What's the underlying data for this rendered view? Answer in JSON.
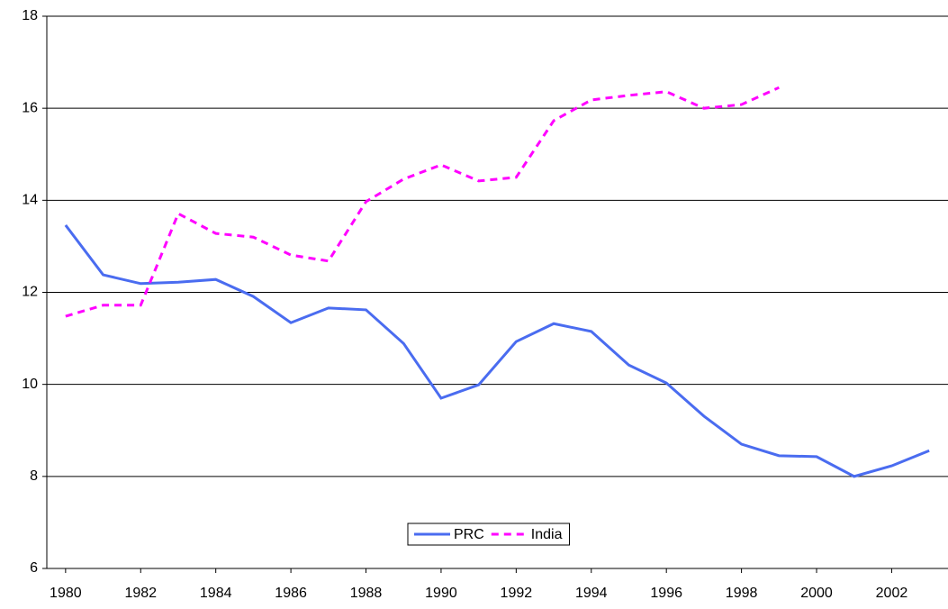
{
  "chart_data": {
    "type": "line",
    "x": [
      1980,
      1981,
      1982,
      1983,
      1984,
      1985,
      1986,
      1987,
      1988,
      1989,
      1990,
      1991,
      1992,
      1993,
      1994,
      1995,
      1996,
      1997,
      1998,
      1999,
      2000,
      2001,
      2002,
      2003
    ],
    "series": [
      {
        "name": "PRC",
        "color": "#4a6cf0",
        "style": "solid",
        "values": [
          13.46,
          12.38,
          12.19,
          12.22,
          12.28,
          11.91,
          11.34,
          11.66,
          11.62,
          10.89,
          9.7,
          9.99,
          10.93,
          11.32,
          11.15,
          10.42,
          10.03,
          9.31,
          8.7,
          8.45,
          8.43,
          8.0,
          8.23,
          8.56
        ]
      },
      {
        "name": "India",
        "color": "#ff00ff",
        "style": "dashed",
        "values": [
          11.48,
          11.72,
          11.72,
          13.71,
          13.28,
          13.2,
          12.81,
          12.68,
          13.97,
          14.46,
          14.77,
          14.42,
          14.5,
          15.73,
          16.18,
          16.28,
          16.36,
          16.0,
          16.08,
          16.45,
          null,
          null,
          null,
          null
        ]
      }
    ],
    "xlim": [
      1979.5,
      2003.5
    ],
    "xticks": [
      1980,
      1982,
      1984,
      1986,
      1988,
      1990,
      1992,
      1994,
      1996,
      1998,
      2000,
      2002
    ],
    "ylim": [
      6,
      18
    ],
    "yticks": [
      6,
      8,
      10,
      12,
      14,
      16,
      18
    ],
    "grid": true,
    "legend": "bottom"
  }
}
